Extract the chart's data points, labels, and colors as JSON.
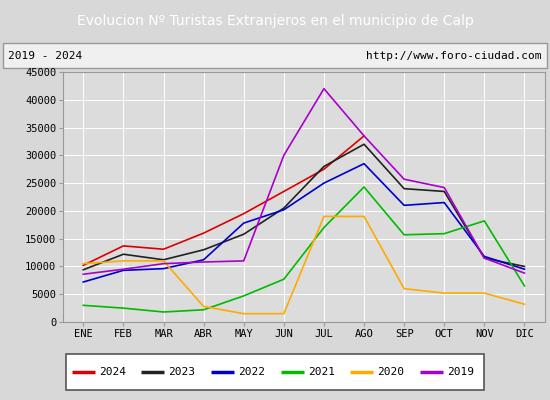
{
  "title": "Evolucion Nº Turistas Extranjeros en el municipio de Calp",
  "subtitle_left": "2019 - 2024",
  "subtitle_right": "http://www.foro-ciudad.com",
  "title_bg": "#4a7abf",
  "title_color": "white",
  "months": [
    "ENE",
    "FEB",
    "MAR",
    "ABR",
    "MAY",
    "JUN",
    "JUL",
    "AGO",
    "SEP",
    "OCT",
    "NOV",
    "DIC"
  ],
  "ylim": [
    0,
    45000
  ],
  "yticks": [
    0,
    5000,
    10000,
    15000,
    20000,
    25000,
    30000,
    35000,
    40000,
    45000
  ],
  "series": {
    "2024": {
      "color": "#dd0000",
      "data": [
        10200,
        13700,
        13100,
        16000,
        19500,
        23500,
        27500,
        33500,
        null,
        null,
        null,
        null
      ]
    },
    "2023": {
      "color": "#222222",
      "data": [
        9400,
        12200,
        11200,
        13000,
        15800,
        20500,
        28000,
        32000,
        24000,
        23500,
        11500,
        10000
      ]
    },
    "2022": {
      "color": "#0000cc",
      "data": [
        7200,
        9300,
        9600,
        11200,
        17800,
        20200,
        25000,
        28500,
        21000,
        21500,
        11800,
        9500
      ]
    },
    "2021": {
      "color": "#00bb00",
      "data": [
        3000,
        2500,
        1800,
        2200,
        4700,
        7700,
        17000,
        24300,
        15700,
        15900,
        18200,
        6500
      ]
    },
    "2020": {
      "color": "#ffaa00",
      "data": [
        10500,
        11000,
        11000,
        2800,
        1500,
        1500,
        19000,
        19000,
        6000,
        5200,
        5200,
        3200
      ]
    },
    "2019": {
      "color": "#aa00cc",
      "data": [
        8600,
        9500,
        10500,
        10800,
        11000,
        30000,
        42000,
        33500,
        25700,
        24200,
        11500,
        8800
      ]
    }
  },
  "legend_order": [
    "2024",
    "2023",
    "2022",
    "2021",
    "2020",
    "2019"
  ],
  "background_plot": "#e8e8e8",
  "background_fig": "#d8d8d8",
  "background_subtitle": "#f0f0f0",
  "grid_color": "white",
  "plot_bg": "#dcdcdc"
}
